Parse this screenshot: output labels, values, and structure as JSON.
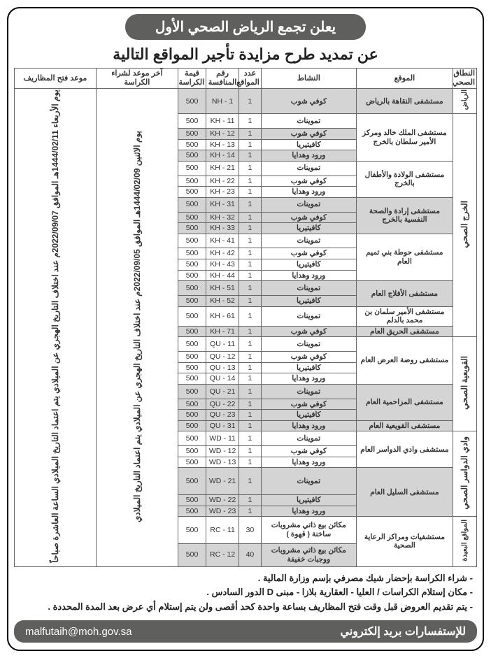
{
  "header": "يعلن تجمع الرياض الصحي الأول",
  "subtitle": "عن تمديد طرح مزايدة تأجير المواقع التالية",
  "cols": {
    "region": "النطاق الصحي",
    "location": "الموقع",
    "activity": "النشاط",
    "count": "عدد المواقع",
    "ref": "رقم المنافسة",
    "price": "قيمة الكراسة",
    "lastBuy": "آخر موعد لشراء الكراسة",
    "openDate": "موعد فتح المظاريف"
  },
  "lastBuy": "يوم الاثنين 1444/02/09هـ الموافق 2022/09/05م عند اختلاف التاريخ الهجري عن الميلادي يتم اعتماد التاريخ الميلادي",
  "openDate": "يوم الأربعاء 1444/02/11هـ الموافق 2022/09/07م عند اختلاف التاريخ الهجري عن الميلادي يتم اعتماد التاريخ الميلادي الساعة العاشرة صباحاً",
  "regions": {
    "riyadh": "الرياض",
    "kharj": "الخرج الصحي",
    "quwaiyah": "القويعية الصحي",
    "wadi": "وادي الدواسر الصحي",
    "remote": "المواقع البعيدة"
  },
  "rows": [
    {
      "region": "riyadh",
      "shade": true,
      "loc": "مستشفى النقاهة بالرياض",
      "act": "كوفي شوب",
      "n": "1",
      "ref": "NH - 1",
      "p": "500",
      "locspan": 1
    },
    {
      "region": "kharj",
      "loc": "مستشفى الملك خالد ومركز الأمير سلطان بالخرج",
      "act": "تموينات",
      "n": "1",
      "ref": "KH - 11",
      "p": "500",
      "locspan": 4
    },
    {
      "region": "kharj",
      "shade": true,
      "act": "كوفي شوب",
      "n": "1",
      "ref": "KH - 12",
      "p": "500"
    },
    {
      "region": "kharj",
      "act": "كافيتيريا",
      "n": "1",
      "ref": "KH - 13",
      "p": "500"
    },
    {
      "region": "kharj",
      "shade": true,
      "act": "ورود وهدايا",
      "n": "1",
      "ref": "KH - 14",
      "p": "500"
    },
    {
      "region": "kharj",
      "loc": "مستشفى الولادة والأطفال بالخرج",
      "act": "تموينات",
      "n": "1",
      "ref": "KH - 21",
      "p": "500",
      "locspan": 3
    },
    {
      "region": "kharj",
      "act": "كوفي شوب",
      "n": "1",
      "ref": "KH - 22",
      "p": "500"
    },
    {
      "region": "kharj",
      "act": "ورود وهدايا",
      "n": "1",
      "ref": "KH - 23",
      "p": "500"
    },
    {
      "region": "kharj",
      "shade": true,
      "loc": "مستشفى إرادة والصحة النفسية بالخرج",
      "act": "تموينات",
      "n": "1",
      "ref": "KH - 31",
      "p": "500",
      "locspan": 3
    },
    {
      "region": "kharj",
      "shade": true,
      "act": "كوفي شوب",
      "n": "1",
      "ref": "KH - 32",
      "p": "500"
    },
    {
      "region": "kharj",
      "shade": true,
      "act": "كافيتيريا",
      "n": "1",
      "ref": "KH - 33",
      "p": "500"
    },
    {
      "region": "kharj",
      "loc": "مستشفى حوطة بني تميم العام",
      "act": "تموينات",
      "n": "1",
      "ref": "KH - 41",
      "p": "500",
      "locspan": 4
    },
    {
      "region": "kharj",
      "act": "كوفي شوب",
      "n": "1",
      "ref": "KH - 42",
      "p": "500"
    },
    {
      "region": "kharj",
      "act": "كافيتيريا",
      "n": "1",
      "ref": "KH - 43",
      "p": "500"
    },
    {
      "region": "kharj",
      "act": "ورود وهدايا",
      "n": "1",
      "ref": "KH - 44",
      "p": "500"
    },
    {
      "region": "kharj",
      "shade": true,
      "loc": "مستشفى الأفلاج العام",
      "act": "تموينات",
      "n": "1",
      "ref": "KH - 51",
      "p": "500",
      "locspan": 2
    },
    {
      "region": "kharj",
      "shade": true,
      "act": "كافيتيريا",
      "n": "1",
      "ref": "KH - 52",
      "p": "500"
    },
    {
      "region": "kharj",
      "loc": "مستشفى الأمير سلمان بن محمد بالدلم",
      "act": "تموينات",
      "n": "1",
      "ref": "KH - 61",
      "p": "500",
      "locspan": 1
    },
    {
      "region": "kharj",
      "shade": true,
      "loc": "مستشفى الحريق العام",
      "act": "كوفي شوب",
      "n": "1",
      "ref": "KH - 71",
      "p": "500",
      "locspan": 1
    },
    {
      "region": "quwaiyah",
      "loc": "مستشفى روضة العرض العام",
      "act": "تموينات",
      "n": "1",
      "ref": "QU - 11",
      "p": "500",
      "locspan": 4
    },
    {
      "region": "quwaiyah",
      "act": "كوفي شوب",
      "n": "1",
      "ref": "QU - 12",
      "p": "500"
    },
    {
      "region": "quwaiyah",
      "act": "كافيتيريا",
      "n": "1",
      "ref": "QU - 13",
      "p": "500"
    },
    {
      "region": "quwaiyah",
      "act": "ورود وهدايا",
      "n": "1",
      "ref": "QU - 14",
      "p": "500"
    },
    {
      "region": "quwaiyah",
      "shade": true,
      "loc": "مستشفى المزاحمية العام",
      "act": "تموينات",
      "n": "1",
      "ref": "QU - 21",
      "p": "500",
      "locspan": 3
    },
    {
      "region": "quwaiyah",
      "shade": true,
      "act": "كوفي شوب",
      "n": "1",
      "ref": "QU - 22",
      "p": "500"
    },
    {
      "region": "quwaiyah",
      "shade": true,
      "act": "كافيتيريا",
      "n": "1",
      "ref": "QU - 23",
      "p": "500"
    },
    {
      "region": "quwaiyah",
      "shade": true,
      "loc": "مستشفى القويعية العام",
      "act": "ورود وهدايا",
      "n": "1",
      "ref": "QU - 31",
      "p": "500",
      "locspan": 1
    },
    {
      "region": "wadi",
      "loc": "مستشفى وادي الدواسر العام",
      "act": "تموينات",
      "n": "1",
      "ref": "WD - 11",
      "p": "500",
      "locspan": 3
    },
    {
      "region": "wadi",
      "act": "كوفي شوب",
      "n": "1",
      "ref": "WD - 12",
      "p": "500"
    },
    {
      "region": "wadi",
      "act": "ورود وهدايا",
      "n": "1",
      "ref": "WD - 13",
      "p": "500"
    },
    {
      "region": "wadi",
      "shade": true,
      "loc": "مستشفى السليل العام",
      "act": "تموينات",
      "n": "1",
      "ref": "WD - 21",
      "p": "500",
      "locspan": 3
    },
    {
      "region": "wadi",
      "shade": true,
      "act": "كافيتيريا",
      "n": "1",
      "ref": "WD - 22",
      "p": "500"
    },
    {
      "region": "wadi",
      "shade": true,
      "act": "ورود وهدايا",
      "n": "1",
      "ref": "WD - 23",
      "p": "500"
    },
    {
      "region": "remote",
      "loc": "مستشفيات ومراكز الرعاية الصحية",
      "act": "مكائن بيع ذاتي مشروبات ساخنة ( قهوة )",
      "n": "30",
      "ref": "RC - 11",
      "p": "500",
      "locspan": 2
    },
    {
      "region": "remote",
      "shade": true,
      "act": "مكائن بيع ذاتي مشروبات ووجبات خفيفة",
      "n": "40",
      "ref": "RC - 12",
      "p": "500"
    }
  ],
  "regionCounts": {
    "riyadh": 1,
    "kharj": 18,
    "quwaiyah": 8,
    "wadi": 6,
    "remote": 2
  },
  "notes": [
    "- شراء الكراسة بإحضار شيك مصرفي بإسم وزارة المالية .",
    "- مكان إستلام الكراسات / العليا - العقارية بلازا -  مبنى D الدور السادس .",
    "- يتم تقديم العروض قبل وقت فتح المظاريف بساعة واحدة كحد أقصى ولن يتم إستلام أي عرض بعد المدة المحددة ."
  ],
  "footer": {
    "label": "للإستفسارات بريد إلكتروني",
    "email": "malfutaih@moh.gov.sa"
  }
}
